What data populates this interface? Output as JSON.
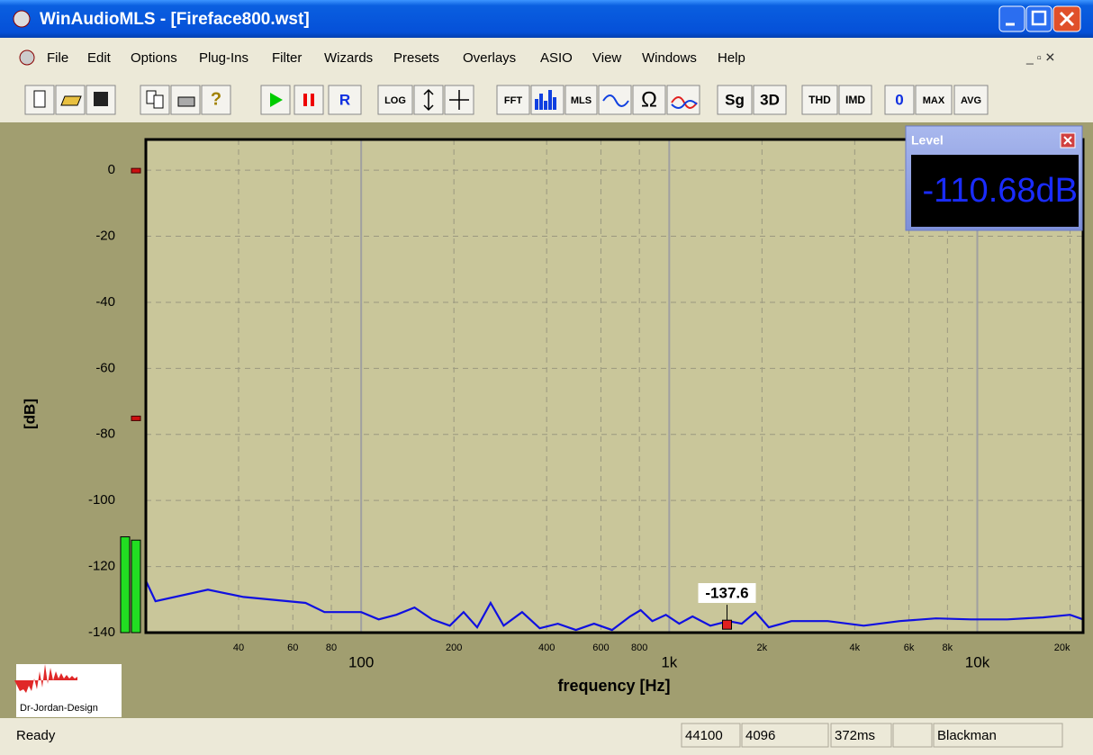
{
  "window": {
    "title": "WinAudioMLS - [Fireface800.wst]"
  },
  "menu": [
    "File",
    "Edit",
    "Options",
    "Plug-Ins",
    "Filter",
    "Wizards",
    "Presets",
    "Overlays",
    "ASIO",
    "View",
    "Windows",
    "Help"
  ],
  "toolbar": [
    "R",
    "LOG",
    "FFT",
    "MLS",
    "Sg",
    "3D",
    "THD",
    "IMD",
    "0",
    "MAX",
    "AVG"
  ],
  "chart_data": {
    "type": "line",
    "xlabel": "frequency [Hz]",
    "ylabel": "[dB]",
    "xscale": "log",
    "xlim": [
      20,
      22050
    ],
    "ylim": [
      -140,
      9.3
    ],
    "xticks": [
      100,
      {
        "value": 1000,
        "label": "1k"
      },
      {
        "value": 10000,
        "label": "10k"
      }
    ],
    "xticks_minor": [
      40,
      60,
      80,
      200,
      400,
      600,
      800,
      {
        "value": 2000,
        "label": "2k"
      },
      {
        "value": 4000,
        "label": "4k"
      },
      {
        "value": 6000,
        "label": "6k"
      },
      {
        "value": 8000,
        "label": "8k"
      },
      {
        "value": 20000,
        "label": "20k"
      }
    ],
    "yticks": [
      0,
      -20,
      -40,
      -60,
      -80,
      -100,
      -120,
      -140
    ],
    "grid": true,
    "x": [
      20,
      21.5,
      31.8,
      41.5,
      66,
      76,
      100,
      114,
      130,
      149,
      170,
      194,
      215,
      238,
      263,
      290,
      333,
      380,
      435,
      498,
      570,
      652,
      746,
      808,
      881,
      975,
      1077,
      1190,
      1360,
      1558,
      1720,
      1905,
      2105,
      2492,
      3268,
      4278,
      5600,
      7337,
      9540,
      12500,
      16340,
      20000,
      22050
    ],
    "series": [
      {
        "color": "#1010e0",
        "values": [
          -124.3,
          -130.5,
          -127,
          -129.2,
          -131,
          -133.8,
          -133.8,
          -136,
          -134.6,
          -132.4,
          -136,
          -137.9,
          -133.8,
          -138.4,
          -131,
          -137.9,
          -133.8,
          -138.7,
          -137.3,
          -139.2,
          -137.3,
          -139.2,
          -135.1,
          -133.2,
          -136.5,
          -134.6,
          -137.3,
          -135.1,
          -137.9,
          -136.5,
          -137.3,
          -133.8,
          -138.4,
          -136.5,
          -136.5,
          -137.9,
          -136.5,
          -135.7,
          -136,
          -136,
          -135.4,
          -134.6,
          -136
        ]
      }
    ],
    "marker": {
      "x": 1540,
      "value": -137.6,
      "color": "#e02020"
    },
    "meter": {
      "color": "#22dd22",
      "values": [
        -111,
        -112
      ],
      "peaks": [
        0,
        -75
      ],
      "peak_color": "#cc1010"
    }
  },
  "level_panel": {
    "title": "Level",
    "value": "-110.68dB"
  },
  "logo": "Dr-Jordan-Design",
  "status_bar": [
    "Ready",
    "44100",
    "4096",
    "372ms",
    "",
    "Blackman"
  ]
}
